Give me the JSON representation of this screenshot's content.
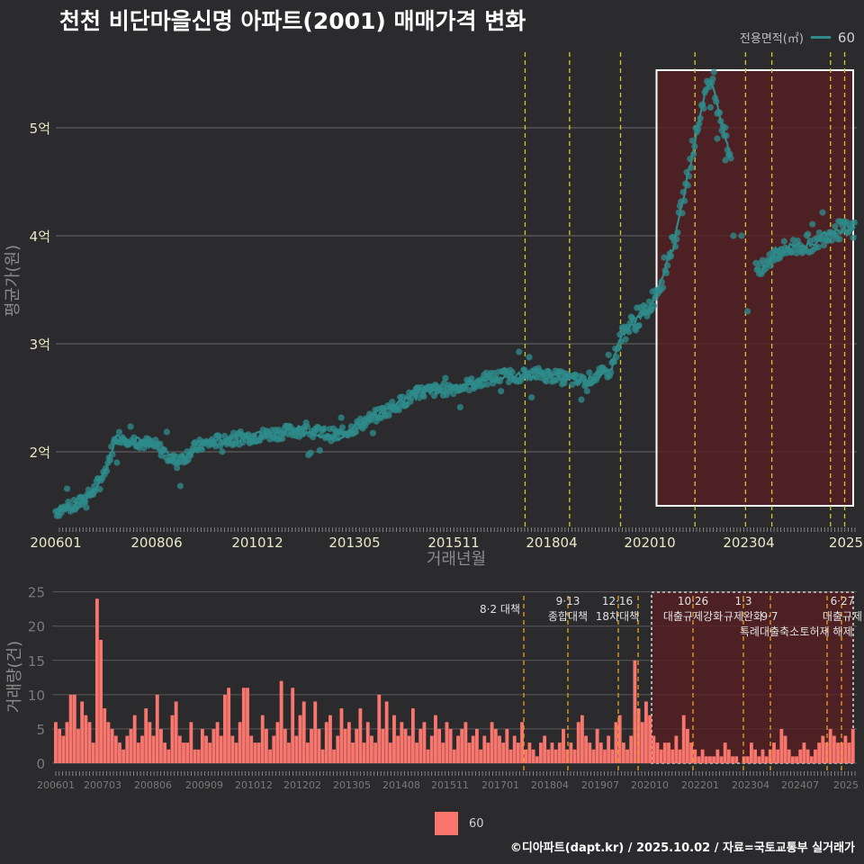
{
  "title": "천천 비단마을신명 아파트(2001) 매매가격 변화",
  "legend": {
    "title": "전용면적(㎡)",
    "label": "60",
    "color": "#2e8b8b"
  },
  "bottom_legend": {
    "label": "60",
    "color": "#f8766d"
  },
  "footer": "©디아파트(dapt.kr) / 2025.10.02 / 자료=국토교통부 실거래가",
  "chart_data": [
    {
      "type": "line",
      "title": "천천 비단마을신명 아파트(2001) 매매가격 변화",
      "xlabel": "거래년월",
      "ylabel": "평균가(원)",
      "x_ticks": [
        "200601",
        "200806",
        "201012",
        "201305",
        "201511",
        "201804",
        "202010",
        "202304",
        "2025"
      ],
      "y_ticks": [
        {
          "label": "2억",
          "value": 2.0
        },
        {
          "label": "3억",
          "value": 3.0
        },
        {
          "label": "4억",
          "value": 4.0
        },
        {
          "label": "5억",
          "value": 5.0
        }
      ],
      "ylim": [
        1.3,
        5.7
      ],
      "xlim": [
        2006.0,
        2025.8
      ],
      "series_name": "60",
      "series": [
        {
          "t": 2006.0,
          "v": 1.45
        },
        {
          "t": 2006.5,
          "v": 1.5
        },
        {
          "t": 2006.9,
          "v": 1.62
        },
        {
          "t": 2007.2,
          "v": 1.8
        },
        {
          "t": 2007.5,
          "v": 2.15
        },
        {
          "t": 2008.0,
          "v": 2.1
        },
        {
          "t": 2008.5,
          "v": 2.05
        },
        {
          "t": 2009.0,
          "v": 1.9
        },
        {
          "t": 2009.5,
          "v": 2.05
        },
        {
          "t": 2010.0,
          "v": 2.1
        },
        {
          "t": 2011.0,
          "v": 2.15
        },
        {
          "t": 2012.0,
          "v": 2.2
        },
        {
          "t": 2013.0,
          "v": 2.15
        },
        {
          "t": 2014.0,
          "v": 2.35
        },
        {
          "t": 2015.0,
          "v": 2.55
        },
        {
          "t": 2016.0,
          "v": 2.6
        },
        {
          "t": 2017.0,
          "v": 2.7
        },
        {
          "t": 2018.0,
          "v": 2.72
        },
        {
          "t": 2019.0,
          "v": 2.65
        },
        {
          "t": 2019.7,
          "v": 2.75
        },
        {
          "t": 2020.0,
          "v": 3.1
        },
        {
          "t": 2020.6,
          "v": 3.3
        },
        {
          "t": 2021.0,
          "v": 3.6
        },
        {
          "t": 2021.3,
          "v": 3.95
        },
        {
          "t": 2021.7,
          "v": 4.7
        },
        {
          "t": 2022.0,
          "v": 5.25
        },
        {
          "t": 2022.2,
          "v": 5.45
        },
        {
          "t": 2022.5,
          "v": 5.0
        },
        {
          "t": 2023.4,
          "v": 3.65
        },
        {
          "t": 2023.8,
          "v": 3.85
        },
        {
          "t": 2024.3,
          "v": 3.9
        },
        {
          "t": 2024.8,
          "v": 3.95
        },
        {
          "t": 2025.2,
          "v": 4.05
        },
        {
          "t": 2025.7,
          "v": 4.05
        }
      ],
      "policy_lines": [
        2017.6,
        2018.7,
        2019.96,
        2021.8,
        2023.05,
        2023.7,
        2025.15,
        2025.5
      ],
      "highlight_start": 2020.85
    },
    {
      "type": "bar",
      "ylabel": "거래량(건)",
      "x_ticks": [
        "200601",
        "200703",
        "200806",
        "200909",
        "201012",
        "201202",
        "201305",
        "201408",
        "201511",
        "201701",
        "201804",
        "201907",
        "202010",
        "202201",
        "202304",
        "202407",
        "2025"
      ],
      "y_ticks": [
        0,
        5,
        10,
        15,
        20,
        25
      ],
      "ylim": [
        0,
        26
      ],
      "series_name": "60",
      "annotations": [
        {
          "date": "8·2 대책",
          "label": ""
        },
        {
          "date": "9·13",
          "label": "종합대책"
        },
        {
          "date": "12·16",
          "label": "18차대책"
        },
        {
          "date": "10·26",
          "label": "대출규제강화"
        },
        {
          "date": "1·3",
          "label": "규제완화"
        },
        {
          "date": "9·7",
          "label": "특례대출축소"
        },
        {
          "date": "",
          "label": "토허제 해제"
        },
        {
          "date": "6·27",
          "label": "대출규제"
        }
      ],
      "volumes_by_month": [
        6,
        5,
        4,
        6,
        10,
        10,
        5,
        9,
        7,
        6,
        3,
        24,
        18,
        8,
        6,
        5,
        4,
        3,
        2,
        4,
        5,
        7,
        3,
        4,
        8,
        6,
        4,
        10,
        5,
        3,
        2,
        7,
        9,
        4,
        3,
        3,
        6,
        2,
        2,
        5,
        4,
        3,
        5,
        6,
        4,
        10,
        11,
        4,
        3,
        6,
        11,
        11,
        4,
        3,
        3,
        7,
        5,
        2,
        4,
        6,
        12,
        5,
        3,
        11,
        4,
        7,
        9,
        3,
        5,
        9,
        5,
        2,
        6,
        7,
        2,
        4,
        8,
        5,
        6,
        3,
        5,
        8,
        3,
        6,
        4,
        3,
        10,
        5,
        9,
        3,
        7,
        4,
        6,
        5,
        4,
        8,
        3,
        5,
        6,
        2,
        4,
        7,
        5,
        3,
        6,
        5,
        2,
        4,
        5,
        6,
        3,
        4,
        5,
        2,
        4,
        3,
        6,
        5,
        4,
        3,
        5,
        2,
        4,
        3,
        6,
        2,
        3,
        2,
        1,
        3,
        4,
        2,
        3,
        2,
        3,
        5,
        2,
        3,
        2,
        6,
        7,
        4,
        3,
        2,
        5,
        3,
        2,
        4,
        2,
        6,
        7,
        3,
        2,
        4,
        15,
        8,
        6,
        9,
        7,
        4,
        3,
        2,
        3,
        3,
        2,
        4,
        2,
        7,
        5,
        3,
        2,
        1,
        2,
        1,
        1,
        1,
        2,
        1,
        3,
        2,
        1,
        1,
        0,
        1,
        1,
        3,
        2,
        1,
        2,
        1,
        2,
        3,
        2,
        5,
        4,
        2,
        1,
        1,
        2,
        3,
        2,
        1,
        2,
        3,
        4,
        3,
        5,
        4,
        3,
        3,
        4,
        3,
        5
      ]
    }
  ]
}
